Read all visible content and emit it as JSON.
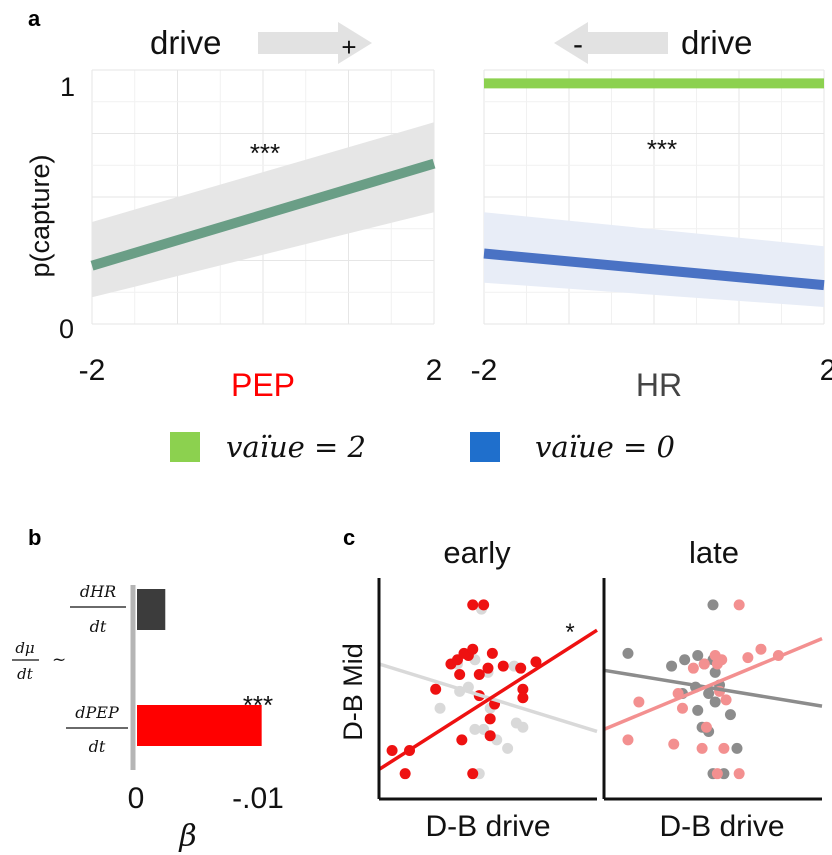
{
  "panel_labels": {
    "a": "a",
    "b": "b",
    "c": "c"
  },
  "colors": {
    "pep": "#6a9e86",
    "value2": "#8cd14f",
    "value0": "#4a72c4",
    "pep_label": "#ff0000",
    "hr_label": "#444444",
    "legend_green": "#8cd14f",
    "legend_blue": "#1f6fcc",
    "bar_hr": "#3c3c3c",
    "bar_pep": "#ff0000",
    "scatter_early": "#ee1111",
    "scatter_late": "#f39090",
    "scatter_grey_early": "#d9d9d9",
    "scatter_grey_late": "#8c8c8c"
  },
  "panel_a": {
    "ylabel": "p(capture)",
    "y_tick_top": "1",
    "y_tick_bottom": "0",
    "left_drive_word": "drive",
    "left_drive_sign": "+",
    "right_drive_word": "drive",
    "right_drive_sign": "-",
    "left_x_min": "-2",
    "left_x_max": "2",
    "right_x_min": "-2",
    "right_x_max": "2",
    "left_xlabel": "PEP",
    "right_xlabel": "HR",
    "left_sig": "***",
    "right_sig": "***",
    "legend": [
      {
        "label": "vaïue = 2",
        "color": "#8cd14f"
      },
      {
        "label": "vaïue = 0",
        "color": "#1f6fcc"
      }
    ]
  },
  "panel_b": {
    "dmu_num": "dμ",
    "dmu_den": "dt",
    "tilde": "~",
    "dhr_num": "dHR",
    "dhr_den": "dt",
    "dpep_num": "dPEP",
    "dpep_den": "dt",
    "tick_zero": "0",
    "tick_end": "-.01",
    "xlabel": "β",
    "sig": "***"
  },
  "panel_c": {
    "ylabel": "D-B Mid",
    "early_title": "early",
    "late_title": "late",
    "early_xlabel": "D-B drive",
    "late_xlabel": "D-B drive",
    "early_sig": "*"
  },
  "chart_data": [
    {
      "type": "line",
      "panel": "a-left",
      "xlabel": "PEP",
      "ylabel": "p(capture)",
      "xlim": [
        -2,
        2
      ],
      "ylim": [
        0,
        1
      ],
      "series": [
        {
          "x": [
            -2,
            2
          ],
          "values": [
            0.24,
            0.66
          ],
          "band_lower": [
            0.11,
            0.46
          ],
          "band_upper": [
            0.42,
            0.83
          ]
        }
      ],
      "annotation": "***"
    },
    {
      "type": "line",
      "panel": "a-right",
      "xlabel": "HR",
      "xlim": [
        -2,
        2
      ],
      "ylim": [
        0,
        1
      ],
      "series": [
        {
          "name": "vaïue = 2",
          "x": [
            -2,
            2
          ],
          "values": [
            0.99,
            0.99
          ]
        },
        {
          "name": "vaïue = 0",
          "x": [
            -2,
            2
          ],
          "values": [
            0.29,
            0.16
          ],
          "band_lower": [
            0.17,
            0.07
          ],
          "band_upper": [
            0.46,
            0.32
          ]
        }
      ],
      "annotation": "***"
    },
    {
      "type": "bar",
      "panel": "b",
      "orientation": "horizontal",
      "categories": [
        "dHR/dt",
        "dPEP/dt"
      ],
      "values": [
        -0.0024,
        -0.0103
      ],
      "xlim": [
        0,
        -0.011
      ],
      "xlabel": "β",
      "annotation": "***"
    },
    {
      "type": "scatter",
      "panel": "c-early",
      "title": "early",
      "xlabel": "D-B drive",
      "ylabel": "D-B Mid",
      "xlim": [
        0,
        10
      ],
      "ylim": [
        0,
        10
      ],
      "series": [
        {
          "color": "#ee1111",
          "x": [
            4.3,
            4.8,
            0.6,
            1.2,
            2.6,
            3.3,
            4.1,
            4.6,
            5.0,
            3.6,
            3.9,
            4.3,
            5.2,
            5.7,
            3.7,
            6.5,
            7.2,
            6.6,
            4.6,
            5.3,
            5.1,
            6.6,
            5.1,
            3.8,
            1.4,
            4.3
          ],
          "y": [
            9.2,
            9.2,
            2.3,
            1.2,
            5.2,
            6.4,
            6.8,
            5.9,
            6.2,
            6.6,
            6.9,
            7.1,
            6.9,
            6.3,
            5.9,
            6.2,
            6.5,
            5.2,
            4.9,
            4.5,
            3.8,
            4.8,
            3.0,
            2.8,
            2.3,
            1.2
          ]
        },
        {
          "color": "#d9d9d9",
          "x": [
            3.6,
            4.4,
            5.0,
            6.2,
            3.7,
            4.1,
            2.8,
            5.1,
            4.8,
            6.3,
            6.6,
            4.4,
            5.4,
            5.9,
            4.6,
            4.7
          ],
          "y": [
            6.4,
            6.6,
            6.0,
            6.3,
            5.1,
            5.3,
            4.3,
            4.3,
            3.3,
            3.6,
            3.4,
            3.3,
            2.8,
            2.4,
            1.2,
            9.0
          ]
        }
      ],
      "fits": [
        {
          "color": "#ee1111",
          "x": [
            0,
            10
          ],
          "y": [
            1.4,
            8.0
          ]
        },
        {
          "color": "#d9d9d9",
          "x": [
            0,
            10
          ],
          "y": [
            6.4,
            3.2
          ]
        }
      ],
      "annotation": "*"
    },
    {
      "type": "scatter",
      "panel": "c-late",
      "title": "late",
      "xlabel": "D-B drive",
      "xlim": [
        0,
        10
      ],
      "ylim": [
        0,
        10
      ],
      "series": [
        {
          "color": "#f39090",
          "x": [
            6.2,
            1.6,
            3.4,
            4.6,
            5.1,
            4.1,
            5.4,
            6.6,
            7.2,
            8.0,
            5.2,
            5.6,
            1.1,
            3.2,
            4.7,
            4.5,
            5.5,
            5.2,
            6.2,
            5.3,
            3.6
          ],
          "y": [
            9.2,
            4.6,
            5.0,
            6.4,
            6.8,
            6.2,
            6.6,
            6.7,
            7.1,
            6.8,
            6.4,
            4.7,
            2.8,
            2.6,
            3.4,
            2.4,
            2.4,
            1.2,
            1.2,
            5.1,
            4.3
          ]
        },
        {
          "color": "#8c8c8c",
          "x": [
            5.0,
            1.1,
            3.1,
            3.7,
            4.3,
            4.6,
            5.0,
            5.1,
            5.3,
            4.2,
            3.6,
            4.8,
            4.3,
            4.5,
            4.8,
            5.1,
            5.8,
            6.1,
            5.5,
            5.0
          ],
          "y": [
            9.2,
            6.9,
            6.3,
            6.6,
            6.8,
            6.4,
            6.6,
            6.0,
            5.4,
            5.3,
            5.0,
            5.0,
            4.2,
            3.4,
            3.2,
            4.6,
            4.0,
            2.4,
            1.2,
            1.2
          ]
        }
      ],
      "fits": [
        {
          "color": "#f39090",
          "x": [
            0,
            10
          ],
          "y": [
            3.3,
            7.6
          ]
        },
        {
          "color": "#8c8c8c",
          "x": [
            0,
            10
          ],
          "y": [
            6.1,
            4.4
          ]
        }
      ]
    }
  ]
}
